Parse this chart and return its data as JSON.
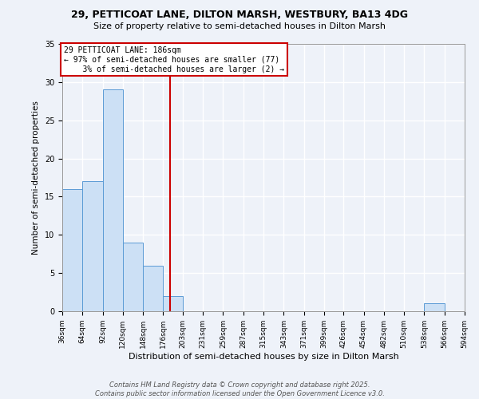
{
  "title_line1": "29, PETTICOAT LANE, DILTON MARSH, WESTBURY, BA13 4DG",
  "title_line2": "Size of property relative to semi-detached houses in Dilton Marsh",
  "bar_values": [
    16,
    17,
    29,
    9,
    6,
    2,
    0,
    0,
    0,
    0,
    0,
    0,
    0,
    0,
    0,
    0,
    0,
    0,
    1,
    0
  ],
  "bin_edges": [
    36,
    64,
    92,
    120,
    148,
    176,
    203,
    231,
    259,
    287,
    315,
    343,
    371,
    399,
    426,
    454,
    482,
    510,
    538,
    566,
    594
  ],
  "bin_labels": [
    "36sqm",
    "64sqm",
    "92sqm",
    "120sqm",
    "148sqm",
    "176sqm",
    "203sqm",
    "231sqm",
    "259sqm",
    "287sqm",
    "315sqm",
    "343sqm",
    "371sqm",
    "399sqm",
    "426sqm",
    "454sqm",
    "482sqm",
    "510sqm",
    "538sqm",
    "566sqm",
    "594sqm"
  ],
  "bar_color": "#cce0f5",
  "bar_edge_color": "#5b9bd5",
  "red_line_x": 186,
  "annotation_text": "29 PETTICOAT LANE: 186sqm\n← 97% of semi-detached houses are smaller (77)\n    3% of semi-detached houses are larger (2) →",
  "xlabel": "Distribution of semi-detached houses by size in Dilton Marsh",
  "ylabel": "Number of semi-detached properties",
  "ylim": [
    0,
    35
  ],
  "yticks": [
    0,
    5,
    10,
    15,
    20,
    25,
    30,
    35
  ],
  "footnote": "Contains HM Land Registry data © Crown copyright and database right 2025.\nContains public sector information licensed under the Open Government Licence v3.0.",
  "background_color": "#eef2f9",
  "grid_color": "#ffffff",
  "annotation_box_facecolor": "#ffffff",
  "annotation_box_edgecolor": "#cc0000",
  "red_line_color": "#cc0000",
  "title_fontsize": 9,
  "subtitle_fontsize": 8,
  "xlabel_fontsize": 8,
  "ylabel_fontsize": 7.5,
  "tick_fontsize": 6.5,
  "annotation_fontsize": 7,
  "footnote_fontsize": 6
}
